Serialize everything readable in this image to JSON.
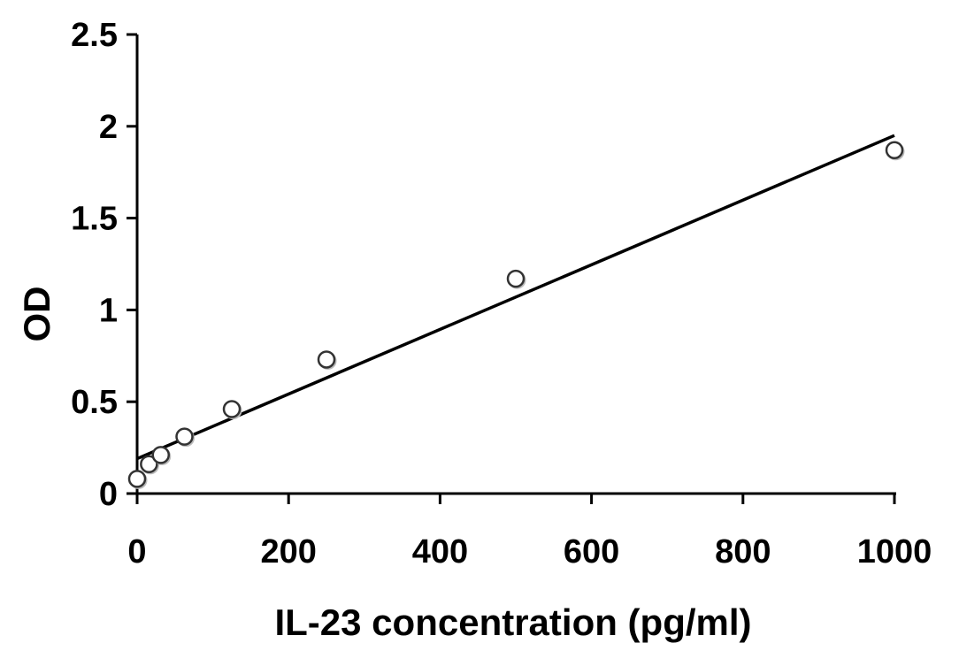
{
  "chart_data": {
    "type": "scatter",
    "title": "",
    "xlabel": "IL-23 concentration (pg/ml)",
    "ylabel": "OD",
    "xlim": [
      0,
      1000
    ],
    "ylim": [
      0,
      2.5
    ],
    "xticks": [
      0,
      200,
      400,
      600,
      800,
      1000
    ],
    "yticks": [
      0,
      0.5,
      1,
      1.5,
      2,
      2.5
    ],
    "xtick_labels": [
      "0",
      "200",
      "400",
      "600",
      "800",
      "1000"
    ],
    "ytick_labels": [
      "0",
      "0.5",
      "1",
      "1.5",
      "2",
      "2.5"
    ],
    "grid": false,
    "legend": "none",
    "series": [
      {
        "marker": "open-circle",
        "x": [
          0,
          15.6,
          31.25,
          62.5,
          125,
          250,
          500,
          1000
        ],
        "y": [
          0.08,
          0.16,
          0.21,
          0.31,
          0.46,
          0.73,
          1.17,
          1.87
        ]
      }
    ],
    "trendline": {
      "type": "linear",
      "x": [
        0,
        1000
      ],
      "y": [
        0.19,
        1.95
      ]
    },
    "colors": {
      "axis": "#000000",
      "marker_stroke": "#333333",
      "marker_fill": "#ffffff",
      "trendline": "#000000"
    }
  }
}
